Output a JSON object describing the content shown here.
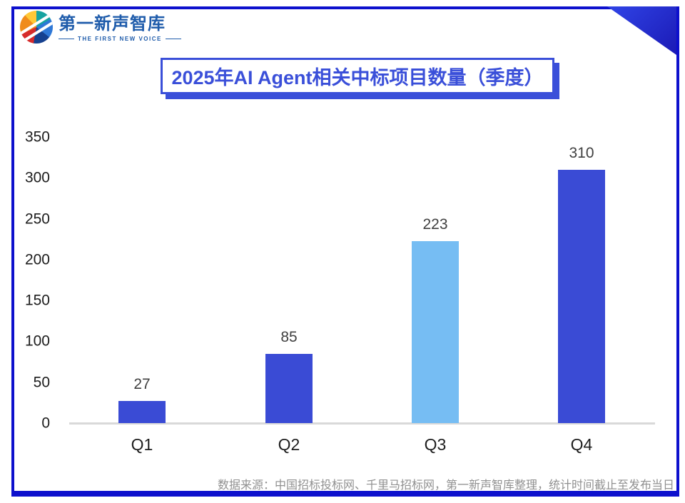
{
  "logo": {
    "icon": "colorful-globe-logo",
    "name": "第一新声智库",
    "tagline": "THE FIRST NEW VOICE"
  },
  "chart_data": {
    "type": "bar",
    "title": "2025年AI Agent相关中标项目数量（季度）",
    "categories": [
      "Q1",
      "Q2",
      "Q3",
      "Q4"
    ],
    "values": [
      27,
      85,
      223,
      310
    ],
    "value_labels": [
      "27",
      "85",
      "223",
      "310"
    ],
    "bar_colors": [
      "#3a4bd5",
      "#3a4bd5",
      "#76bdf3",
      "#3a4bd5"
    ],
    "xlabel": "",
    "ylabel": "",
    "ylim": [
      0,
      350
    ],
    "yticks": [
      0,
      50,
      100,
      150,
      200,
      250,
      300,
      350
    ],
    "grid": false,
    "legend": null
  },
  "footer": {
    "source_text": "数据来源：中国招标投标网、千里马招标网，第一新声智库整理，统计时间截止至发布当日"
  },
  "colors": {
    "frame_border": "#0d10cd",
    "accent_blue": "#3a4fd9",
    "bar_blue": "#3a4bd5",
    "bar_light_blue": "#76bdf3",
    "axis_line": "#d9d9d9",
    "value_label_gray": "#404040",
    "source_gray": "#909090",
    "logo_blue": "#1f5cab"
  }
}
